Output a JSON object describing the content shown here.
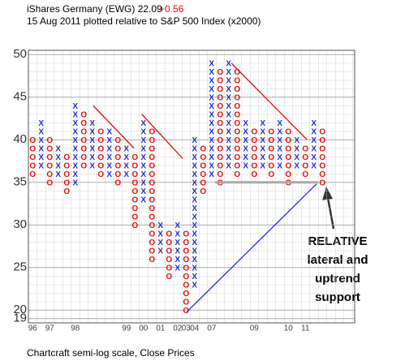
{
  "chart_data": {
    "type": "point-and-figure",
    "title": "iShares Germany (EWG) 22.09",
    "change": "+0.56",
    "subtitle": "15 Aug 2011  plotted relative to S&P 500 Index (x2000)",
    "footer": "Chartcraft semi-log scale, Close Prices",
    "annotation": [
      "RELATIVE",
      "lateral and",
      "uptrend",
      "support"
    ],
    "ylim": [
      18.5,
      50.5
    ],
    "yticks": [
      19,
      20,
      25,
      30,
      35,
      40,
      45,
      50
    ],
    "colors": {
      "X": "#2233cc",
      "O": "#dd1111"
    },
    "columns": [
      {
        "type": "O",
        "low": 36,
        "high": 40
      },
      {
        "type": "X",
        "low": 37,
        "high": 42
      },
      {
        "type": "O",
        "low": 35,
        "high": 40
      },
      {
        "type": "X",
        "low": 36,
        "high": 39
      },
      {
        "type": "O",
        "low": 34,
        "high": 38
      },
      {
        "type": "X",
        "low": 35,
        "high": 44
      },
      {
        "type": "O",
        "low": 37,
        "high": 43
      },
      {
        "type": "X",
        "low": 37,
        "high": 42
      },
      {
        "type": "O",
        "low": 36,
        "high": 41
      },
      {
        "type": "X",
        "low": 36,
        "high": 41
      },
      {
        "type": "O",
        "low": 35,
        "high": 40
      },
      {
        "type": "X",
        "low": 36,
        "high": 39
      },
      {
        "type": "O",
        "low": 30,
        "high": 38
      },
      {
        "type": "X",
        "low": 33,
        "high": 42
      },
      {
        "type": "O",
        "low": 26,
        "high": 41
      },
      {
        "type": "X",
        "low": 27,
        "high": 30
      },
      {
        "type": "O",
        "low": 24,
        "high": 29
      },
      {
        "type": "X",
        "low": 25,
        "high": 30
      },
      {
        "type": "O",
        "low": 20,
        "high": 29
      },
      {
        "type": "X",
        "low": 23,
        "high": 40
      },
      {
        "type": "O",
        "low": 34,
        "high": 39
      },
      {
        "type": "X",
        "low": 36,
        "high": 49
      },
      {
        "type": "O",
        "low": 35,
        "high": 48
      },
      {
        "type": "X",
        "low": 37,
        "high": 49
      },
      {
        "type": "O",
        "low": 36,
        "high": 48
      },
      {
        "type": "X",
        "low": 37,
        "high": 42
      },
      {
        "type": "O",
        "low": 36,
        "high": 41
      },
      {
        "type": "X",
        "low": 37,
        "high": 42
      },
      {
        "type": "O",
        "low": 36,
        "high": 41
      },
      {
        "type": "X",
        "low": 37,
        "high": 42
      },
      {
        "type": "O",
        "low": 35,
        "high": 41
      },
      {
        "type": "X",
        "low": 37,
        "high": 40
      },
      {
        "type": "O",
        "low": 36,
        "high": 39
      },
      {
        "type": "X",
        "low": 37,
        "high": 42
      },
      {
        "type": "O",
        "low": 35,
        "high": 41
      }
    ],
    "x_labels": [
      {
        "column": 0,
        "label": "96"
      },
      {
        "column": 2,
        "label": "97"
      },
      {
        "column": 5,
        "label": "98"
      },
      {
        "column": 11,
        "label": "99"
      },
      {
        "column": 13,
        "label": "00"
      },
      {
        "column": 15,
        "label": "01"
      },
      {
        "column": 17,
        "label": "02"
      },
      {
        "column": 18,
        "label": "03"
      },
      {
        "column": 19,
        "label": "04"
      },
      {
        "column": 21,
        "label": "07"
      },
      {
        "column": 26,
        "label": "09"
      },
      {
        "column": 30,
        "label": "10"
      },
      {
        "column": 32,
        "label": "11"
      }
    ],
    "trend_lines": [
      {
        "color": "#dd1111",
        "from": [
          7.1,
          44
        ],
        "to": [
          11.9,
          39
        ]
      },
      {
        "color": "#dd1111",
        "from": [
          12.8,
          43
        ],
        "to": [
          17.6,
          37.8
        ]
      },
      {
        "color": "#dd1111",
        "from": [
          23.3,
          49
        ],
        "to": [
          32.2,
          40
        ]
      },
      {
        "color": "#2233dd",
        "from": [
          18.1,
          19.8
        ],
        "to": [
          33.3,
          34.8
        ]
      },
      {
        "color": "#aaaaaa",
        "from": [
          21.4,
          35
        ],
        "to": [
          33.5,
          35
        ]
      }
    ]
  }
}
